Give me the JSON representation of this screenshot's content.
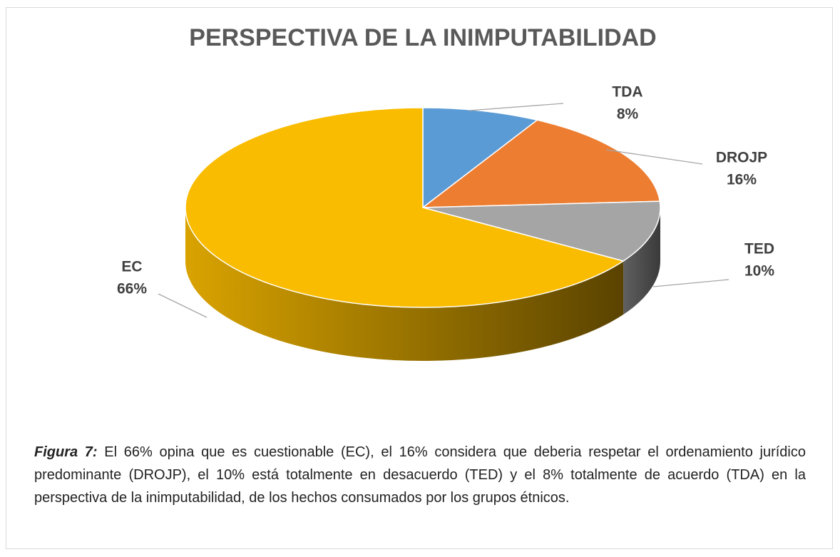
{
  "chart_data": {
    "type": "pie3d",
    "title": "PERSPECTIVA DE LA INIMPUTABILIDAD",
    "categories": [
      "TDA",
      "DROJP",
      "TED",
      "EC"
    ],
    "values": [
      8,
      16,
      10,
      66
    ],
    "value_labels": [
      "8%",
      "16%",
      "10%",
      "66%"
    ],
    "colors": [
      "#5b9bd5",
      "#ed7d31",
      "#a5a5a5",
      "#f9bc00"
    ]
  },
  "caption": {
    "label": "Figura 7:",
    "text": " El 66% opina que es cuestionable (EC), el 16% considera que deberia respetar el ordenamiento jurídico predominante (DROJP), el 10% está totalmente en desacuerdo (TED) y el 8% totalmente de acuerdo (TDA) en la perspectiva de la inimputabilidad, de los hechos consumados por los grupos étnicos."
  }
}
